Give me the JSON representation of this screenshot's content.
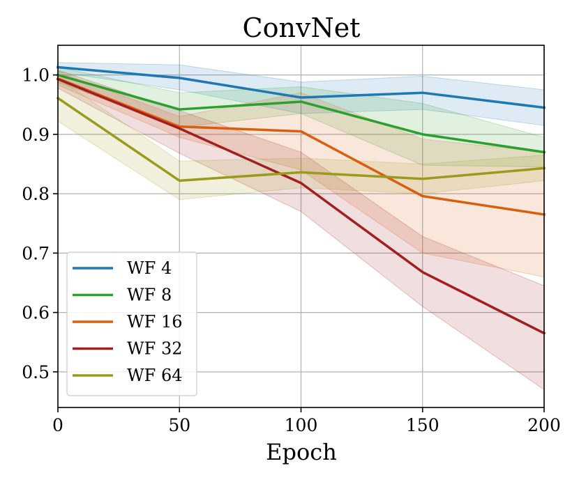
{
  "chart_data": {
    "type": "line",
    "title": "ConvNet",
    "xlabel": "Epoch",
    "ylabel": "",
    "x": [
      0,
      50,
      100,
      150,
      200
    ],
    "xlim": [
      0,
      200
    ],
    "ylim": [
      0.44,
      1.05
    ],
    "xticks": [
      0,
      50,
      100,
      150,
      200
    ],
    "yticks": [
      0.5,
      0.6,
      0.7,
      0.8,
      0.9,
      1.0
    ],
    "xtick_labels": [
      "0",
      "50",
      "100",
      "150",
      "200"
    ],
    "ytick_labels": [
      "0.5",
      "0.6",
      "0.7",
      "0.8",
      "0.9",
      "1.0"
    ],
    "grid": true,
    "legend_position": "lower-left",
    "series": [
      {
        "name": "WF 4",
        "color": "#1f77b4",
        "values": [
          1.013,
          0.995,
          0.962,
          0.97,
          0.945
        ],
        "lower": [
          1.005,
          0.975,
          0.935,
          0.942,
          0.915
        ],
        "upper": [
          1.021,
          1.017,
          0.988,
          0.998,
          0.975
        ]
      },
      {
        "name": "WF 8",
        "color": "#2ca02c",
        "values": [
          1.0,
          0.942,
          0.955,
          0.9,
          0.87
        ],
        "lower": [
          0.988,
          0.912,
          0.935,
          0.848,
          0.845
        ],
        "upper": [
          1.013,
          0.97,
          0.98,
          0.952,
          0.895
        ]
      },
      {
        "name": "WF 16",
        "color": "#d95f0e",
        "values": [
          0.994,
          0.913,
          0.905,
          0.796,
          0.765
        ],
        "lower": [
          0.983,
          0.895,
          0.84,
          0.7,
          0.66
        ],
        "upper": [
          1.005,
          0.93,
          0.97,
          0.892,
          0.87
        ]
      },
      {
        "name": "WF 32",
        "color": "#a31f1f",
        "values": [
          0.993,
          0.91,
          0.818,
          0.668,
          0.565
        ],
        "lower": [
          0.978,
          0.868,
          0.77,
          0.61,
          0.47
        ],
        "upper": [
          1.008,
          0.94,
          0.87,
          0.728,
          0.645
        ]
      },
      {
        "name": "WF 64",
        "color": "#9a9a1c",
        "values": [
          0.961,
          0.822,
          0.836,
          0.825,
          0.843
        ],
        "lower": [
          0.922,
          0.79,
          0.81,
          0.8,
          0.822
        ],
        "upper": [
          0.995,
          0.855,
          0.86,
          0.85,
          0.865
        ]
      }
    ]
  }
}
